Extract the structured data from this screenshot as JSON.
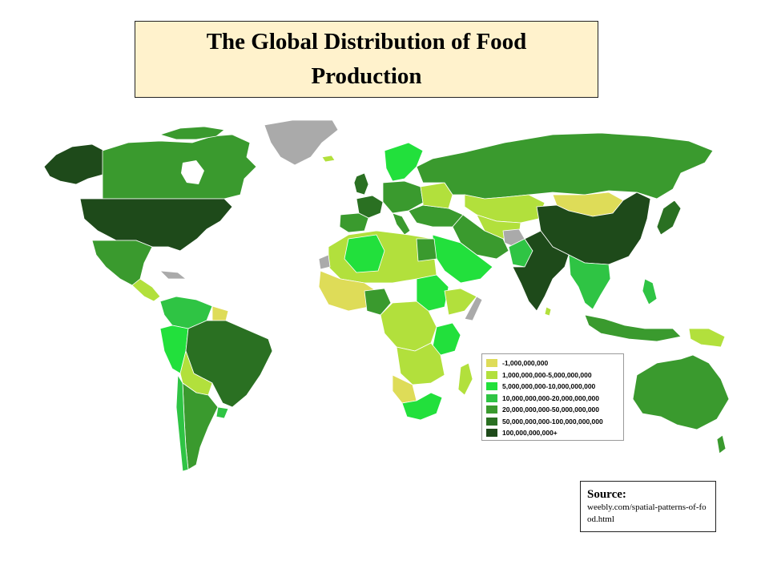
{
  "title": "The Global Distribution of Food Production",
  "legend": {
    "items": [
      {
        "label": "-1,000,000,000",
        "color": "#dedc58"
      },
      {
        "label": "1,000,000,000-5,000,000,000",
        "color": "#b2e03c"
      },
      {
        "label": "5,000,000,000-10,000,000,000",
        "color": "#22e03c"
      },
      {
        "label": "10,000,000,000-20,000,000,000",
        "color": "#2fc444"
      },
      {
        "label": "20,000,000,000-50,000,000,000",
        "color": "#3a9a2e"
      },
      {
        "label": "50,000,000,000-100,000,000,000",
        "color": "#2a7022"
      },
      {
        "label": "100,000,000,000+",
        "color": "#1e4a1a"
      }
    ],
    "no_data_color": "#aaaaaa"
  },
  "source": {
    "title": "Source:",
    "text": "weebly.com/spatial-patterns-of-food.html"
  }
}
